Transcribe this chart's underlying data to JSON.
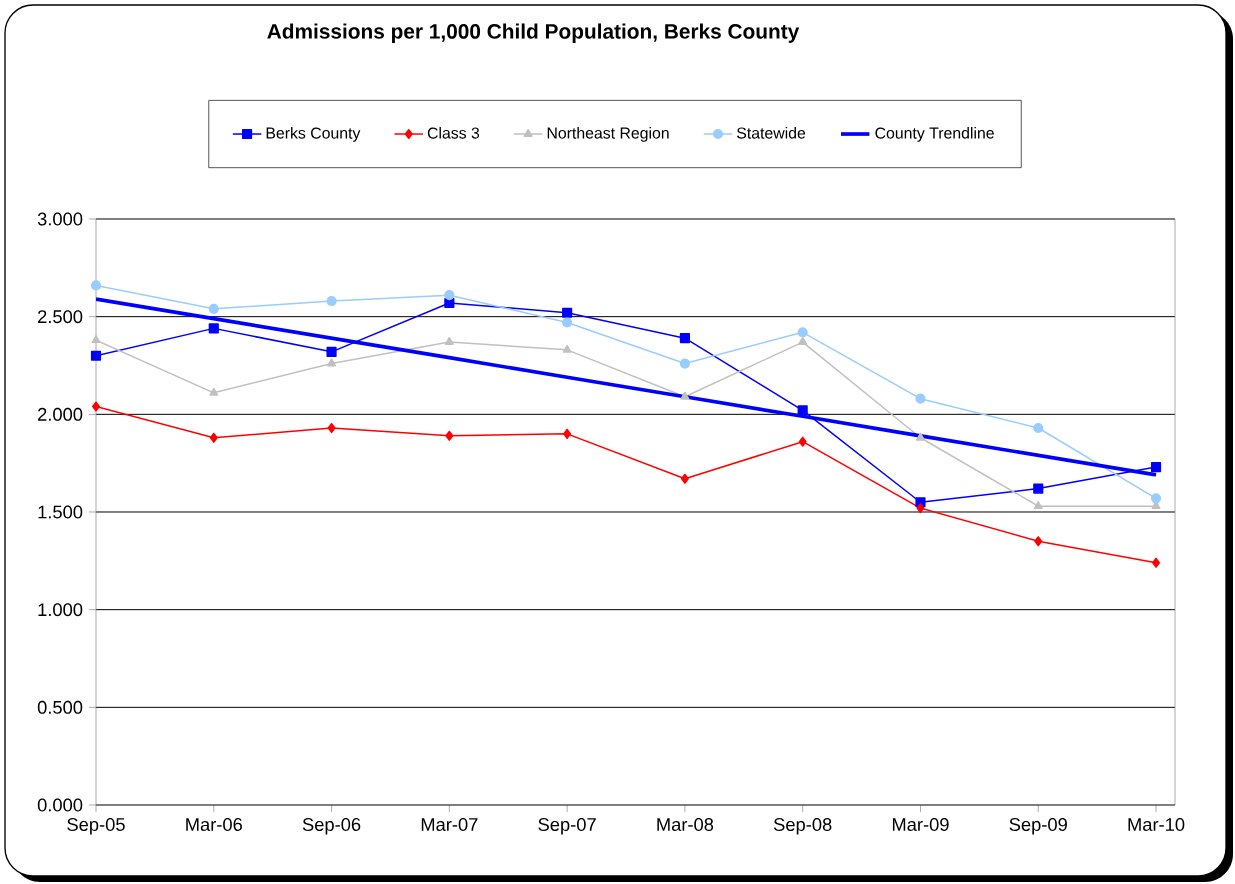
{
  "chart_data": {
    "type": "line",
    "title": "Admissions per 1,000 Child Population, Berks County",
    "categories": [
      "Sep-05",
      "Mar-06",
      "Sep-06",
      "Mar-07",
      "Sep-07",
      "Mar-08",
      "Sep-08",
      "Mar-09",
      "Sep-09",
      "Mar-10"
    ],
    "series": [
      {
        "name": "Berks County",
        "color": "#0000ff",
        "marker": "square",
        "values": [
          2.3,
          2.44,
          2.32,
          2.57,
          2.52,
          2.39,
          2.02,
          1.55,
          1.62,
          1.73
        ]
      },
      {
        "name": "Class 3",
        "color": "#ff0000",
        "marker": "diamond",
        "values": [
          2.04,
          1.88,
          1.93,
          1.89,
          1.9,
          1.67,
          1.86,
          1.52,
          1.35,
          1.24
        ]
      },
      {
        "name": "Northeast Region",
        "color": "#c0c0c0",
        "marker": "triangle",
        "values": [
          2.38,
          2.11,
          2.26,
          2.37,
          2.33,
          2.09,
          2.37,
          1.88,
          1.53,
          1.53
        ]
      },
      {
        "name": "Statewide",
        "color": "#99ccff",
        "marker": "circle",
        "values": [
          2.66,
          2.54,
          2.58,
          2.61,
          2.47,
          2.26,
          2.42,
          2.08,
          1.93,
          1.57
        ]
      },
      {
        "name": "County Trendline",
        "color": "#0000ff",
        "marker": "none",
        "values": [
          2.59,
          2.49,
          2.39,
          2.29,
          2.19,
          2.09,
          1.99,
          1.89,
          1.79,
          1.69
        ]
      }
    ],
    "ylim": [
      0,
      3
    ],
    "yticks": [
      {
        "value": 0,
        "label": "0.000"
      },
      {
        "value": 0.5,
        "label": "0.500"
      },
      {
        "value": 1,
        "label": "1.000"
      },
      {
        "value": 1.5,
        "label": "1.500"
      },
      {
        "value": 2,
        "label": "2.000"
      },
      {
        "value": 2.5,
        "label": "2.500"
      },
      {
        "value": 3,
        "label": "3.000"
      }
    ],
    "grid": "y",
    "legend": "top",
    "line_style": "solid"
  }
}
